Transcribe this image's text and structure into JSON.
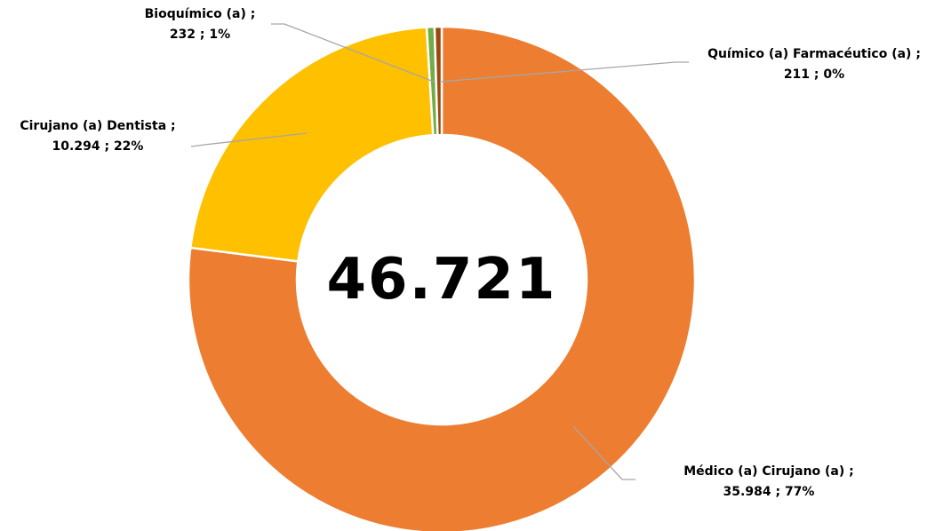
{
  "chart_data": {
    "type": "donut",
    "center_label": "46.721",
    "categories": [
      "Médico (a) Cirujano (a)",
      "Cirujano (a) Dentista",
      "Bioquímico (a)",
      "Químico (a) Farmacéutico (a)"
    ],
    "values": [
      35984,
      10294,
      232,
      211
    ],
    "value_labels": [
      "35.984",
      "10.294",
      "232",
      "211"
    ],
    "percent_labels": [
      "77%",
      "22%",
      "1%",
      "0%"
    ],
    "label_separator": ";",
    "colors": [
      "#ED7D31",
      "#FFC000",
      "#70AD47",
      "#9E480E"
    ]
  }
}
